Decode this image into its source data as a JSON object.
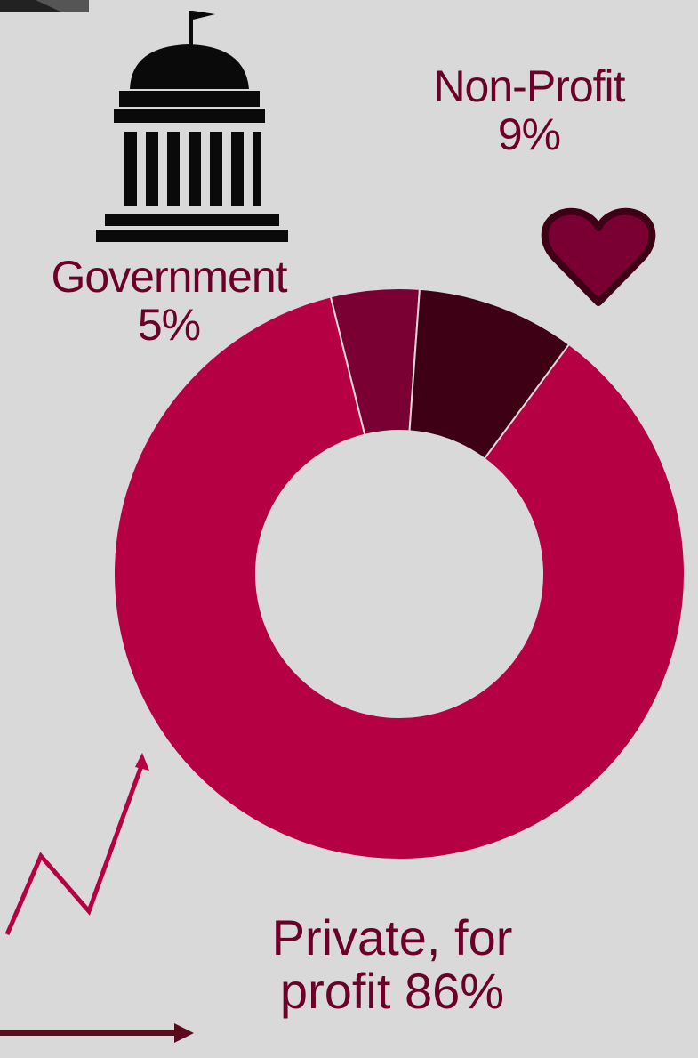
{
  "colors": {
    "background": "#d9d9d9",
    "private": "#b50044",
    "government": "#7a0033",
    "nonprofit": "#3d0014",
    "label_text": "#6b0028",
    "icon_dark": "#0a0a0a",
    "arrow": "#b50044",
    "arrow_dark": "#5c0a1e"
  },
  "icons": {
    "government": "capitol-building-icon",
    "nonprofit": "heart-icon",
    "private": "trend-up-arrow-icon"
  },
  "chart_data": {
    "type": "pie",
    "donut": true,
    "title": "",
    "slices": [
      {
        "label_line1": "Private, for",
        "label_line2": "profit 86%",
        "value": 86,
        "color": "#b50044"
      },
      {
        "label_line1": "Government",
        "label_line2": "5%",
        "value": 5,
        "color": "#7a0033"
      },
      {
        "label_line1": "Non-Profit",
        "label_line2": "9%",
        "value": 9,
        "color": "#3d0014"
      }
    ]
  }
}
